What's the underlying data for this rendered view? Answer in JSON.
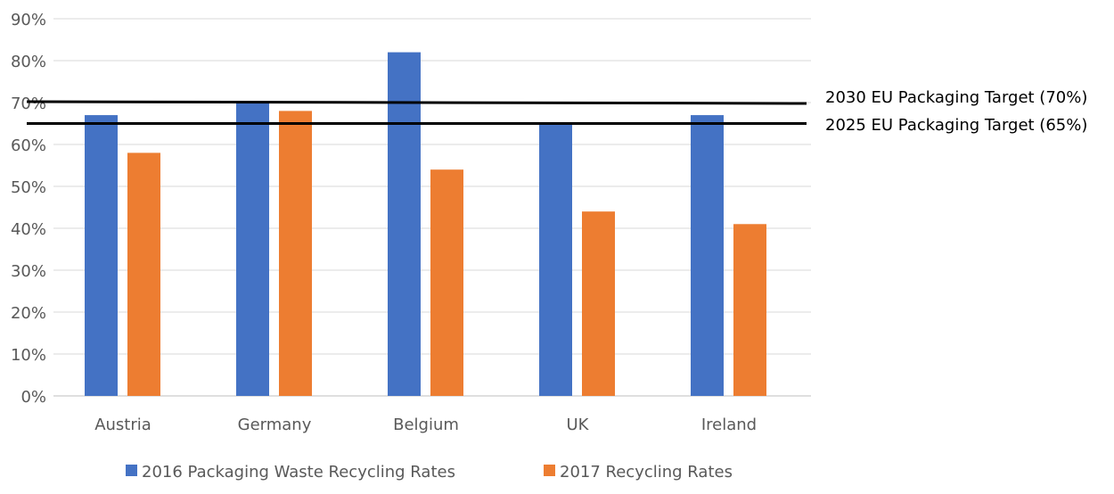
{
  "chart_data": {
    "type": "bar",
    "title": "",
    "xlabel": "",
    "ylabel": "",
    "categories": [
      "Austria",
      "Germany",
      "Belgium",
      "UK",
      "Ireland"
    ],
    "series": [
      {
        "name": "2016 Packaging Waste Recycling Rates",
        "color": "#4472C4",
        "values": [
          67,
          70,
          82,
          65,
          67
        ]
      },
      {
        "name": "2017 Recycling Rates",
        "color": "#ED7D31",
        "values": [
          58,
          68,
          54,
          44,
          41
        ]
      }
    ],
    "ylim": [
      0,
      90
    ],
    "yticks": [
      "0%",
      "10%",
      "20%",
      "30%",
      "40%",
      "50%",
      "60%",
      "70%",
      "80%",
      "90%"
    ],
    "grid": true,
    "legend": "bottom",
    "reference_lines": [
      {
        "label": "2030 EU Packaging Target (70%)",
        "value": 70
      },
      {
        "label": "2025 EU Packaging Target (65%)",
        "value": 65
      }
    ]
  }
}
